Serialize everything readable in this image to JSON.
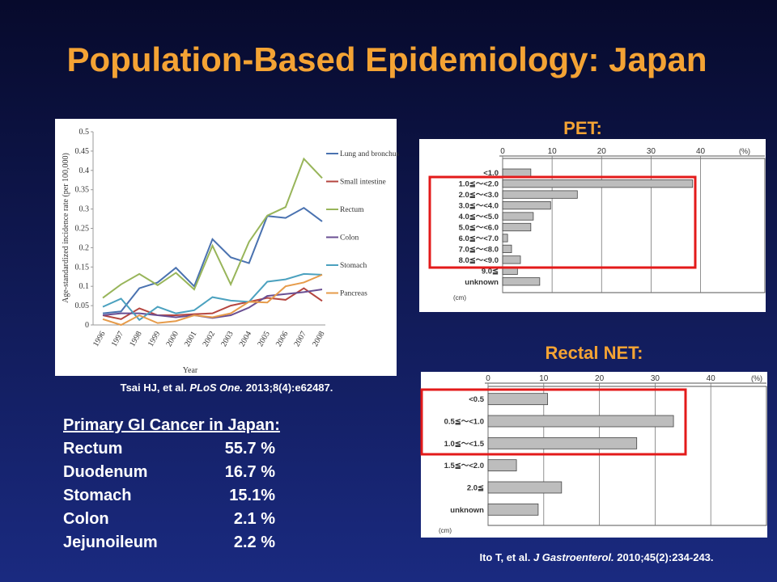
{
  "title": "Population-Based Epidemiology: Japan",
  "chart_data": [
    {
      "type": "line",
      "ylabel": "Age-standardized incidence rate (per 100,000)",
      "xlabel": "Year",
      "categories": [
        "1996",
        "1997",
        "1998",
        "1999",
        "2000",
        "2001",
        "2002",
        "2003",
        "2004",
        "2005",
        "2006",
        "2007",
        "2008"
      ],
      "ylim": [
        0,
        0.5
      ],
      "yticks": [
        0,
        0.05,
        0.1,
        0.15,
        0.2,
        0.25,
        0.3,
        0.35,
        0.4,
        0.45,
        0.5
      ],
      "series": [
        {
          "name": "Lung and bronchus",
          "color": "#4a72b0",
          "values": [
            0.03,
            0.035,
            0.095,
            0.11,
            0.148,
            0.1,
            0.222,
            0.175,
            0.16,
            0.282,
            0.277,
            0.303,
            0.268
          ]
        },
        {
          "name": "Small intestine",
          "color": "#b5453f",
          "values": [
            0.025,
            0.015,
            0.043,
            0.025,
            0.025,
            0.028,
            0.03,
            0.05,
            0.06,
            0.07,
            0.065,
            0.095,
            0.062
          ]
        },
        {
          "name": "Rectum",
          "color": "#98b55a",
          "values": [
            0.07,
            0.105,
            0.132,
            0.103,
            0.135,
            0.092,
            0.205,
            0.105,
            0.215,
            0.283,
            0.305,
            0.43,
            0.38
          ]
        },
        {
          "name": "Colon",
          "color": "#6a4f93",
          "values": [
            0.025,
            0.03,
            0.03,
            0.025,
            0.02,
            0.025,
            0.018,
            0.025,
            0.045,
            0.075,
            0.08,
            0.085,
            0.092
          ]
        },
        {
          "name": "Stomach",
          "color": "#4ba1bf",
          "values": [
            0.047,
            0.068,
            0.013,
            0.047,
            0.03,
            0.038,
            0.072,
            0.063,
            0.06,
            0.112,
            0.118,
            0.132,
            0.13
          ]
        },
        {
          "name": "Pancreas",
          "color": "#e69b4a",
          "values": [
            0.015,
            0.0,
            0.025,
            0.005,
            0.01,
            0.025,
            0.02,
            0.03,
            0.06,
            0.058,
            0.1,
            0.11,
            0.13
          ]
        }
      ]
    },
    {
      "type": "hbar",
      "title": "PET:",
      "unit": "(%)",
      "category_unit": "(cm)",
      "color": "#bdbdbd",
      "categories": [
        "<1.0",
        "1.0≦～<2.0",
        "2.0≦～<3.0",
        "3.0≦～<4.0",
        "4.0≦～<5.0",
        "5.0≦～<6.0",
        "6.0≦～<7.0",
        "7.0≦～<8.0",
        "8.0≦～<9.0",
        "9.0≦",
        "unknown"
      ],
      "values": [
        5.7,
        38.4,
        15.1,
        9.7,
        6.2,
        5.7,
        1.0,
        1.8,
        3.6,
        3.0,
        7.5
      ],
      "xlim": [
        0,
        53
      ],
      "xticks": [
        0,
        10,
        20,
        30,
        40
      ]
    },
    {
      "type": "hbar",
      "title": "Rectal NET:",
      "unit": "(%)",
      "category_unit": "(cm)",
      "color": "#bdbdbd",
      "categories": [
        "<0.5",
        "0.5≦～<1.0",
        "1.0≦～<1.5",
        "1.5≦～<2.0",
        "2.0≦",
        "unknown"
      ],
      "values": [
        10.7,
        33.3,
        26.7,
        5.1,
        13.2,
        9.0
      ],
      "xlim": [
        0,
        50
      ],
      "xticks": [
        0,
        10,
        20,
        30,
        40
      ]
    }
  ],
  "citations": [
    [
      "Tsai HJ, et al. ",
      "PLoS One.",
      " 2013;8(4):e62487."
    ],
    [
      "Ito T, et al. ",
      "J Gastroenterol.",
      " 2010;45(2):234-243."
    ]
  ],
  "table": {
    "title": "Primary GI Cancer in Japan:",
    "rows": [
      [
        "Rectum",
        "55.7 %"
      ],
      [
        "Duodenum",
        "16.7 %"
      ],
      [
        "Stomach",
        "15.1%"
      ],
      [
        "Colon",
        "2.1 %"
      ],
      [
        "Jejunoileum",
        "2.2 %"
      ]
    ]
  }
}
